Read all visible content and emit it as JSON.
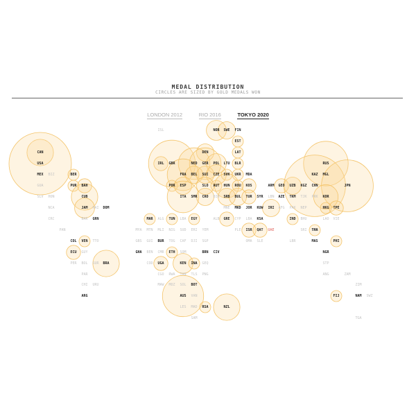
{
  "header": {
    "title": "MEDAL DISTRIBUTION",
    "subtitle": "CIRCLES ARE SIZED BY GOLD MEDALS WON"
  },
  "tabs": [
    {
      "label": "LONDON 2012",
      "active": false
    },
    {
      "label": "RIO 2016",
      "active": false
    },
    {
      "label": "TOKYO 2020",
      "active": true
    }
  ],
  "colors": {
    "bubble_fill": "#fad796",
    "bubble_stroke": "#f4c46a",
    "winner_text": "#222222",
    "no_medal_text": "#c4c4c4",
    "host_text": "#e0605a"
  },
  "chart_data": {
    "type": "bubble-map",
    "size_encoding": "gold medals won",
    "countries": [
      {
        "code": "ISL",
        "s": "none"
      },
      {
        "code": "NOR",
        "s": "win",
        "gold": 4
      },
      {
        "code": "SWE",
        "s": "win",
        "gold": 3
      },
      {
        "code": "FIN",
        "s": "win",
        "gold": 0
      },
      {
        "code": "EST",
        "s": "win",
        "gold": 1
      },
      {
        "code": "LAT",
        "s": "win",
        "gold": 1
      },
      {
        "code": "CAN",
        "s": "win",
        "gold": 7
      },
      {
        "code": "USA",
        "s": "win",
        "gold": 39
      },
      {
        "code": "MEX",
        "s": "win",
        "gold": 0
      },
      {
        "code": "BIZ",
        "s": "none"
      },
      {
        "code": "BER",
        "s": "win",
        "gold": 1
      },
      {
        "code": "GUA",
        "s": "none"
      },
      {
        "code": "PUR",
        "s": "win",
        "gold": 1
      },
      {
        "code": "BAH",
        "s": "win",
        "gold": 2
      },
      {
        "code": "CUB",
        "s": "win",
        "gold": 7
      },
      {
        "code": "JAM",
        "s": "win",
        "gold": 4
      },
      {
        "code": "HAI",
        "s": "none"
      },
      {
        "code": "DOM",
        "s": "win",
        "gold": 0
      },
      {
        "code": "SLV",
        "s": "none"
      },
      {
        "code": "HON",
        "s": "none"
      },
      {
        "code": "NCA",
        "s": "none"
      },
      {
        "code": "CRC",
        "s": "none"
      },
      {
        "code": "PAN",
        "s": "none"
      },
      {
        "code": "GRN",
        "s": "win",
        "gold": 0
      },
      {
        "code": "BAR",
        "s": "none"
      },
      {
        "code": "COL",
        "s": "win",
        "gold": 0
      },
      {
        "code": "VEN",
        "s": "win",
        "gold": 1
      },
      {
        "code": "TTO",
        "s": "none"
      },
      {
        "code": "ECU",
        "s": "win",
        "gold": 2
      },
      {
        "code": "GUY",
        "s": "none"
      },
      {
        "code": "PER",
        "s": "none"
      },
      {
        "code": "BOL",
        "s": "none"
      },
      {
        "code": "SUR",
        "s": "none"
      },
      {
        "code": "BRA",
        "s": "win",
        "gold": 7
      },
      {
        "code": "PAR",
        "s": "none"
      },
      {
        "code": "CHI",
        "s": "none"
      },
      {
        "code": "URU",
        "s": "none"
      },
      {
        "code": "ARG",
        "s": "win",
        "gold": 0
      },
      {
        "code": "IRL",
        "s": "win",
        "gold": 2
      },
      {
        "code": "GBR",
        "s": "win",
        "gold": 22
      },
      {
        "code": "DEN",
        "s": "win",
        "gold": 3
      },
      {
        "code": "NED",
        "s": "win",
        "gold": 10
      },
      {
        "code": "GER",
        "s": "win",
        "gold": 10
      },
      {
        "code": "POL",
        "s": "win",
        "gold": 4
      },
      {
        "code": "LTU",
        "s": "win",
        "gold": 0
      },
      {
        "code": "BLR",
        "s": "win",
        "gold": 1
      },
      {
        "code": "RUS",
        "s": "win",
        "gold": 20
      },
      {
        "code": "FRA",
        "s": "win",
        "gold": 10
      },
      {
        "code": "BEL",
        "s": "win",
        "gold": 3
      },
      {
        "code": "SUI",
        "s": "win",
        "gold": 3
      },
      {
        "code": "CZE",
        "s": "win",
        "gold": 4
      },
      {
        "code": "SVK",
        "s": "win",
        "gold": 1
      },
      {
        "code": "UKR",
        "s": "win",
        "gold": 1
      },
      {
        "code": "MDA",
        "s": "win",
        "gold": 0
      },
      {
        "code": "KAZ",
        "s": "win",
        "gold": 0
      },
      {
        "code": "MGL",
        "s": "win",
        "gold": 0
      },
      {
        "code": "POR",
        "s": "win",
        "gold": 1
      },
      {
        "code": "ESP",
        "s": "win",
        "gold": 3
      },
      {
        "code": "SLO",
        "s": "win",
        "gold": 3
      },
      {
        "code": "AUT",
        "s": "win",
        "gold": 1
      },
      {
        "code": "HUN",
        "s": "win",
        "gold": 6
      },
      {
        "code": "ROU",
        "s": "win",
        "gold": 1
      },
      {
        "code": "KOS",
        "s": "win",
        "gold": 2
      },
      {
        "code": "ARM",
        "s": "win",
        "gold": 0
      },
      {
        "code": "GEO",
        "s": "win",
        "gold": 2
      },
      {
        "code": "UZB",
        "s": "win",
        "gold": 3
      },
      {
        "code": "KGZ",
        "s": "win",
        "gold": 0
      },
      {
        "code": "CHN",
        "s": "win",
        "gold": 38
      },
      {
        "code": "JPN",
        "s": "win",
        "gold": 27
      },
      {
        "code": "ITA",
        "s": "win",
        "gold": 10
      },
      {
        "code": "SMR",
        "s": "win",
        "gold": 0
      },
      {
        "code": "CRO",
        "s": "win",
        "gold": 3
      },
      {
        "code": "BIH",
        "s": "none"
      },
      {
        "code": "SRB",
        "s": "win",
        "gold": 3
      },
      {
        "code": "BUL",
        "s": "win",
        "gold": 3
      },
      {
        "code": "TUR",
        "s": "win",
        "gold": 2
      },
      {
        "code": "SYR",
        "s": "win",
        "gold": 0
      },
      {
        "code": "LBN",
        "s": "none"
      },
      {
        "code": "AZE",
        "s": "win",
        "gold": 0
      },
      {
        "code": "TKM",
        "s": "win",
        "gold": 0
      },
      {
        "code": "TJK",
        "s": "none"
      },
      {
        "code": "PRK",
        "s": "none"
      },
      {
        "code": "KOR",
        "s": "win",
        "gold": 6
      },
      {
        "code": "MNE",
        "s": "none"
      },
      {
        "code": "MKD",
        "s": "win",
        "gold": 0
      },
      {
        "code": "JOR",
        "s": "win",
        "gold": 0
      },
      {
        "code": "KUW",
        "s": "win",
        "gold": 0
      },
      {
        "code": "IRI",
        "s": "win",
        "gold": 3
      },
      {
        "code": "AFG",
        "s": "none"
      },
      {
        "code": "PAK",
        "s": "none"
      },
      {
        "code": "NEP",
        "s": "none"
      },
      {
        "code": "HKG",
        "s": "win",
        "gold": 1
      },
      {
        "code": "TPE",
        "s": "win",
        "gold": 2
      },
      {
        "code": "ALB",
        "s": "none"
      },
      {
        "code": "GRE",
        "s": "win",
        "gold": 2
      },
      {
        "code": "CYP",
        "s": "none"
      },
      {
        "code": "LBA",
        "s": "none"
      },
      {
        "code": "KSA",
        "s": "win",
        "gold": 0
      },
      {
        "code": "IND",
        "s": "win",
        "gold": 1
      },
      {
        "code": "BHU",
        "s": "none"
      },
      {
        "code": "LAO",
        "s": "none"
      },
      {
        "code": "VIE",
        "s": "none"
      },
      {
        "code": "MAR",
        "s": "win",
        "gold": 1
      },
      {
        "code": "ALG",
        "s": "none"
      },
      {
        "code": "TUN",
        "s": "win",
        "gold": 1
      },
      {
        "code": "LBA",
        "s": "none"
      },
      {
        "code": "EGY",
        "s": "win",
        "gold": 1
      },
      {
        "code": "PLE",
        "s": "none"
      },
      {
        "code": "ISR",
        "s": "win",
        "gold": 2
      },
      {
        "code": "QAT",
        "s": "win",
        "gold": 2
      },
      {
        "code": "UAE",
        "s": "host"
      },
      {
        "code": "SRI",
        "s": "none"
      },
      {
        "code": "BAN",
        "s": "none"
      },
      {
        "code": "THA",
        "s": "win",
        "gold": 1
      },
      {
        "code": "MYA",
        "s": "none"
      },
      {
        "code": "MTN",
        "s": "none"
      },
      {
        "code": "MLI",
        "s": "none"
      },
      {
        "code": "NIG",
        "s": "none"
      },
      {
        "code": "SUD",
        "s": "none"
      },
      {
        "code": "ERI",
        "s": "none"
      },
      {
        "code": "YEM",
        "s": "none"
      },
      {
        "code": "OMA",
        "s": "none"
      },
      {
        "code": "MAS",
        "s": "win",
        "gold": 0
      },
      {
        "code": "PHI",
        "s": "win",
        "gold": 1
      },
      {
        "code": "GBS",
        "s": "none"
      },
      {
        "code": "GUI",
        "s": "none"
      },
      {
        "code": "BUR",
        "s": "win",
        "gold": 0
      },
      {
        "code": "TOG",
        "s": "none"
      },
      {
        "code": "CAF",
        "s": "none"
      },
      {
        "code": "DJI",
        "s": "none"
      },
      {
        "code": "SGP",
        "s": "none"
      },
      {
        "code": "SLE",
        "s": "none"
      },
      {
        "code": "LBR",
        "s": "none"
      },
      {
        "code": "GHA",
        "s": "win",
        "gold": 0
      },
      {
        "code": "BEN",
        "s": "none"
      },
      {
        "code": "CMR",
        "s": "none"
      },
      {
        "code": "ETH",
        "s": "win",
        "gold": 1
      },
      {
        "code": "SOM",
        "s": "none"
      },
      {
        "code": "BRN",
        "s": "win",
        "gold": 0
      },
      {
        "code": "CIV",
        "s": "win",
        "gold": 0
      },
      {
        "code": "NGR",
        "s": "win",
        "gold": 0
      },
      {
        "code": "COD",
        "s": "none"
      },
      {
        "code": "UGA",
        "s": "win",
        "gold": 2
      },
      {
        "code": "KEN",
        "s": "win",
        "gold": 4
      },
      {
        "code": "INA",
        "s": "win",
        "gold": 1
      },
      {
        "code": "GEQ",
        "s": "none"
      },
      {
        "code": "STP",
        "s": "none"
      },
      {
        "code": "CGO",
        "s": "none"
      },
      {
        "code": "RWA",
        "s": "none"
      },
      {
        "code": "TAN",
        "s": "none"
      },
      {
        "code": "TLS",
        "s": "none"
      },
      {
        "code": "PNG",
        "s": "none"
      },
      {
        "code": "ANG",
        "s": "none"
      },
      {
        "code": "ZAM",
        "s": "none"
      },
      {
        "code": "MAW",
        "s": "none"
      },
      {
        "code": "MOZ",
        "s": "none"
      },
      {
        "code": "SOL",
        "s": "none"
      },
      {
        "code": "BOT",
        "s": "win",
        "gold": 0
      },
      {
        "code": "ZIM",
        "s": "none"
      },
      {
        "code": "AUS",
        "s": "win",
        "gold": 17
      },
      {
        "code": "VAN",
        "s": "none"
      },
      {
        "code": "FIJ",
        "s": "win",
        "gold": 1
      },
      {
        "code": "NAM",
        "s": "win",
        "gold": 0
      },
      {
        "code": "SWZ",
        "s": "none"
      },
      {
        "code": "LES",
        "s": "none"
      },
      {
        "code": "MAD",
        "s": "none"
      },
      {
        "code": "RSA",
        "s": "win",
        "gold": 1
      },
      {
        "code": "NZL",
        "s": "win",
        "gold": 7
      },
      {
        "code": "SAM",
        "s": "none"
      },
      {
        "code": "TGA",
        "s": "none"
      }
    ]
  }
}
